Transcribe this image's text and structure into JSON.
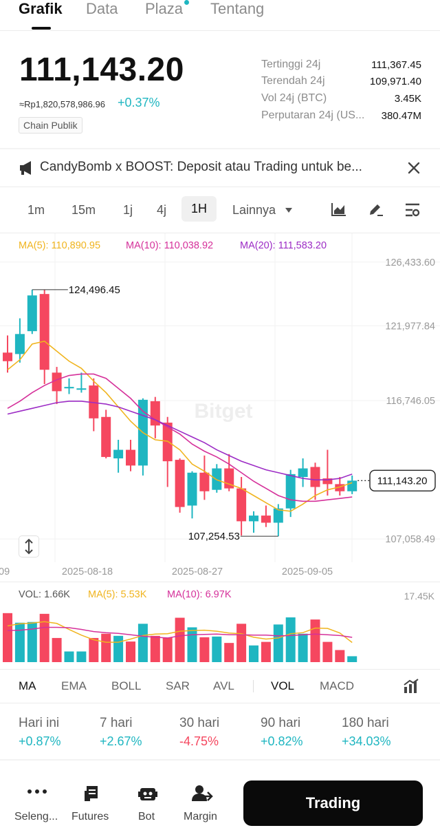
{
  "tabs": [
    "Grafik",
    "Data",
    "Plaza",
    "Tentang"
  ],
  "price": {
    "last": "111,143.20",
    "fiat": "≈Rp1,820,578,986.96",
    "change": "+0.37%",
    "chain": "Chain Publik"
  },
  "stats": [
    {
      "label": "Tertinggi 24j",
      "value": "111,367.45"
    },
    {
      "label": "Terendah 24j",
      "value": "109,971.40"
    },
    {
      "label": "Vol 24j (BTC)",
      "value": "3.45K"
    },
    {
      "label": "Perputaran 24j (US...",
      "value": "380.47M"
    }
  ],
  "banner": {
    "text": "CandyBomb x BOOST: Deposit atau Trading untuk be..."
  },
  "intervals": [
    "1m",
    "15m",
    "1j",
    "4j",
    "1H",
    "Lainnya"
  ],
  "active_interval": "1H",
  "ma_legend": {
    "ma5": "MA(5): 110,890.95",
    "ma10": "MA(10): 110,038.92",
    "ma20": "MA(20): 111,583.20"
  },
  "vol_legend": {
    "vol": "VOL: 1.66K",
    "ma5": "MA(5): 5.53K",
    "ma10": "MA(10): 6.97K"
  },
  "colors": {
    "up": "#1fb6c1",
    "down": "#f5475f",
    "ma5": "#f0b41e",
    "ma10": "#d5309a",
    "ma20": "#9c2bc5",
    "accent": "#1fb6c1"
  },
  "indicators": [
    "MA",
    "EMA",
    "BOLL",
    "SAR",
    "AVL",
    "VOL",
    "MACD"
  ],
  "performance": [
    {
      "label": "Hari ini",
      "value": "+0.87%",
      "dir": "up"
    },
    {
      "label": "7 hari",
      "value": "+2.67%",
      "dir": "up"
    },
    {
      "label": "30 hari",
      "value": "-4.75%",
      "dir": "down"
    },
    {
      "label": "90 hari",
      "value": "+0.82%",
      "dir": "up"
    },
    {
      "label": "180 hari",
      "value": "+34.03%",
      "dir": "up"
    }
  ],
  "bottom_nav": [
    "Seleng...",
    "Futures",
    "Bot",
    "Margin"
  ],
  "trade_label": "Trading",
  "watermark": "Bitget",
  "chart_data": {
    "type": "candlestick",
    "y_ticks": [
      126433.6,
      121977.84,
      116746.05,
      107058.49
    ],
    "y_tick_labels": [
      "126,433.60",
      "121,977.84",
      "116,746.05",
      "107,058.49"
    ],
    "ylim": [
      106200,
      127000
    ],
    "x_tick_labels": [
      "09",
      "2025-08-18",
      "2025-08-27",
      "2025-09-05"
    ],
    "high_label": "124,496.45",
    "low_label": "107,254.53",
    "last_price_label": "111,143.20",
    "last_price": 111143.2,
    "candles": [
      {
        "o": 120100,
        "h": 121300,
        "l": 118700,
        "c": 119500
      },
      {
        "o": 120000,
        "h": 122500,
        "l": 119400,
        "c": 121400
      },
      {
        "o": 121600,
        "h": 124500,
        "l": 121400,
        "c": 124100
      },
      {
        "o": 124200,
        "h": 124496.45,
        "l": 117900,
        "c": 118900
      },
      {
        "o": 118700,
        "h": 119100,
        "l": 116500,
        "c": 117400
      },
      {
        "o": 117600,
        "h": 118300,
        "l": 117200,
        "c": 117700
      },
      {
        "o": 117500,
        "h": 118700,
        "l": 117300,
        "c": 117600
      },
      {
        "o": 117800,
        "h": 118300,
        "l": 114600,
        "c": 115500
      },
      {
        "o": 115600,
        "h": 116100,
        "l": 112700,
        "c": 112800
      },
      {
        "o": 112700,
        "h": 114000,
        "l": 111700,
        "c": 113300
      },
      {
        "o": 113300,
        "h": 114000,
        "l": 111800,
        "c": 112200
      },
      {
        "o": 112200,
        "h": 116900,
        "l": 111500,
        "c": 116800
      },
      {
        "o": 116700,
        "h": 117000,
        "l": 114100,
        "c": 115000
      },
      {
        "o": 115200,
        "h": 115600,
        "l": 110700,
        "c": 112500
      },
      {
        "o": 112600,
        "h": 112700,
        "l": 108900,
        "c": 109300
      },
      {
        "o": 109400,
        "h": 111800,
        "l": 108500,
        "c": 111700
      },
      {
        "o": 111700,
        "h": 112900,
        "l": 109800,
        "c": 110400
      },
      {
        "o": 110500,
        "h": 112300,
        "l": 110300,
        "c": 112000
      },
      {
        "o": 112000,
        "h": 113000,
        "l": 110400,
        "c": 110600
      },
      {
        "o": 110600,
        "h": 111400,
        "l": 107300,
        "c": 108300
      },
      {
        "o": 108300,
        "h": 109000,
        "l": 107500,
        "c": 108700
      },
      {
        "o": 108700,
        "h": 109400,
        "l": 107900,
        "c": 108200
      },
      {
        "o": 108200,
        "h": 109500,
        "l": 107254.53,
        "c": 109200
      },
      {
        "o": 109200,
        "h": 111900,
        "l": 108600,
        "c": 111600
      },
      {
        "o": 111400,
        "h": 112700,
        "l": 110700,
        "c": 112000
      },
      {
        "o": 112100,
        "h": 112400,
        "l": 109800,
        "c": 110700
      },
      {
        "o": 111300,
        "h": 113300,
        "l": 110100,
        "c": 110900
      },
      {
        "o": 110900,
        "h": 111400,
        "l": 110100,
        "c": 110400
      },
      {
        "o": 110400,
        "h": 111500,
        "l": 110200,
        "c": 111143.2
      }
    ],
    "ma5": [
      118900,
      119600,
      120700,
      120900,
      120200,
      119500,
      119000,
      118100,
      117300,
      116300,
      115300,
      114500,
      114000,
      113900,
      113300,
      112300,
      111800,
      111200,
      110900,
      110600,
      110100,
      109600,
      109100,
      109000,
      109500,
      110100,
      110500,
      110700,
      111000
    ],
    "ma10": [
      116200,
      116700,
      117300,
      117800,
      118200,
      118500,
      118600,
      118600,
      118300,
      117600,
      116900,
      116000,
      115400,
      114900,
      114400,
      113700,
      113200,
      112800,
      112300,
      111700,
      111100,
      110600,
      110100,
      109800,
      109700,
      109700,
      109800,
      109900,
      110000
    ],
    "ma20": [
      115800,
      116000,
      116200,
      116400,
      116600,
      116700,
      116700,
      116600,
      116500,
      116300,
      116000,
      115700,
      115400,
      115000,
      114600,
      114200,
      113800,
      113300,
      112900,
      112500,
      112200,
      111900,
      111700,
      111500,
      111300,
      111200,
      111200,
      111300,
      111600
    ],
    "volume": {
      "ylabel_max": "17.45K",
      "max": 17450,
      "values": [
        13800,
        11100,
        11300,
        13600,
        6800,
        3000,
        3000,
        6800,
        8000,
        7400,
        5800,
        10800,
        7400,
        6900,
        12500,
        9800,
        7000,
        7200,
        5400,
        10800,
        4700,
        5700,
        10600,
        12600,
        8000,
        12000,
        5700,
        3400,
        1660
      ],
      "ma5": [
        10200,
        10800,
        11000,
        11400,
        10900,
        9200,
        7600,
        6300,
        5600,
        5600,
        6500,
        7500,
        7900,
        8000,
        8700,
        8900,
        9000,
        8700,
        8200,
        8000,
        7000,
        6500,
        6800,
        8000,
        8300,
        9600,
        9500,
        8200,
        5530
      ],
      "ma10": [
        8900,
        9000,
        9300,
        9800,
        9800,
        9700,
        9200,
        8600,
        8300,
        8100,
        7700,
        7300,
        7000,
        6800,
        7400,
        7700,
        7800,
        7900,
        7700,
        7700,
        7600,
        7600,
        7400,
        7500,
        7700,
        7900,
        7700,
        7500,
        6970
      ]
    }
  }
}
